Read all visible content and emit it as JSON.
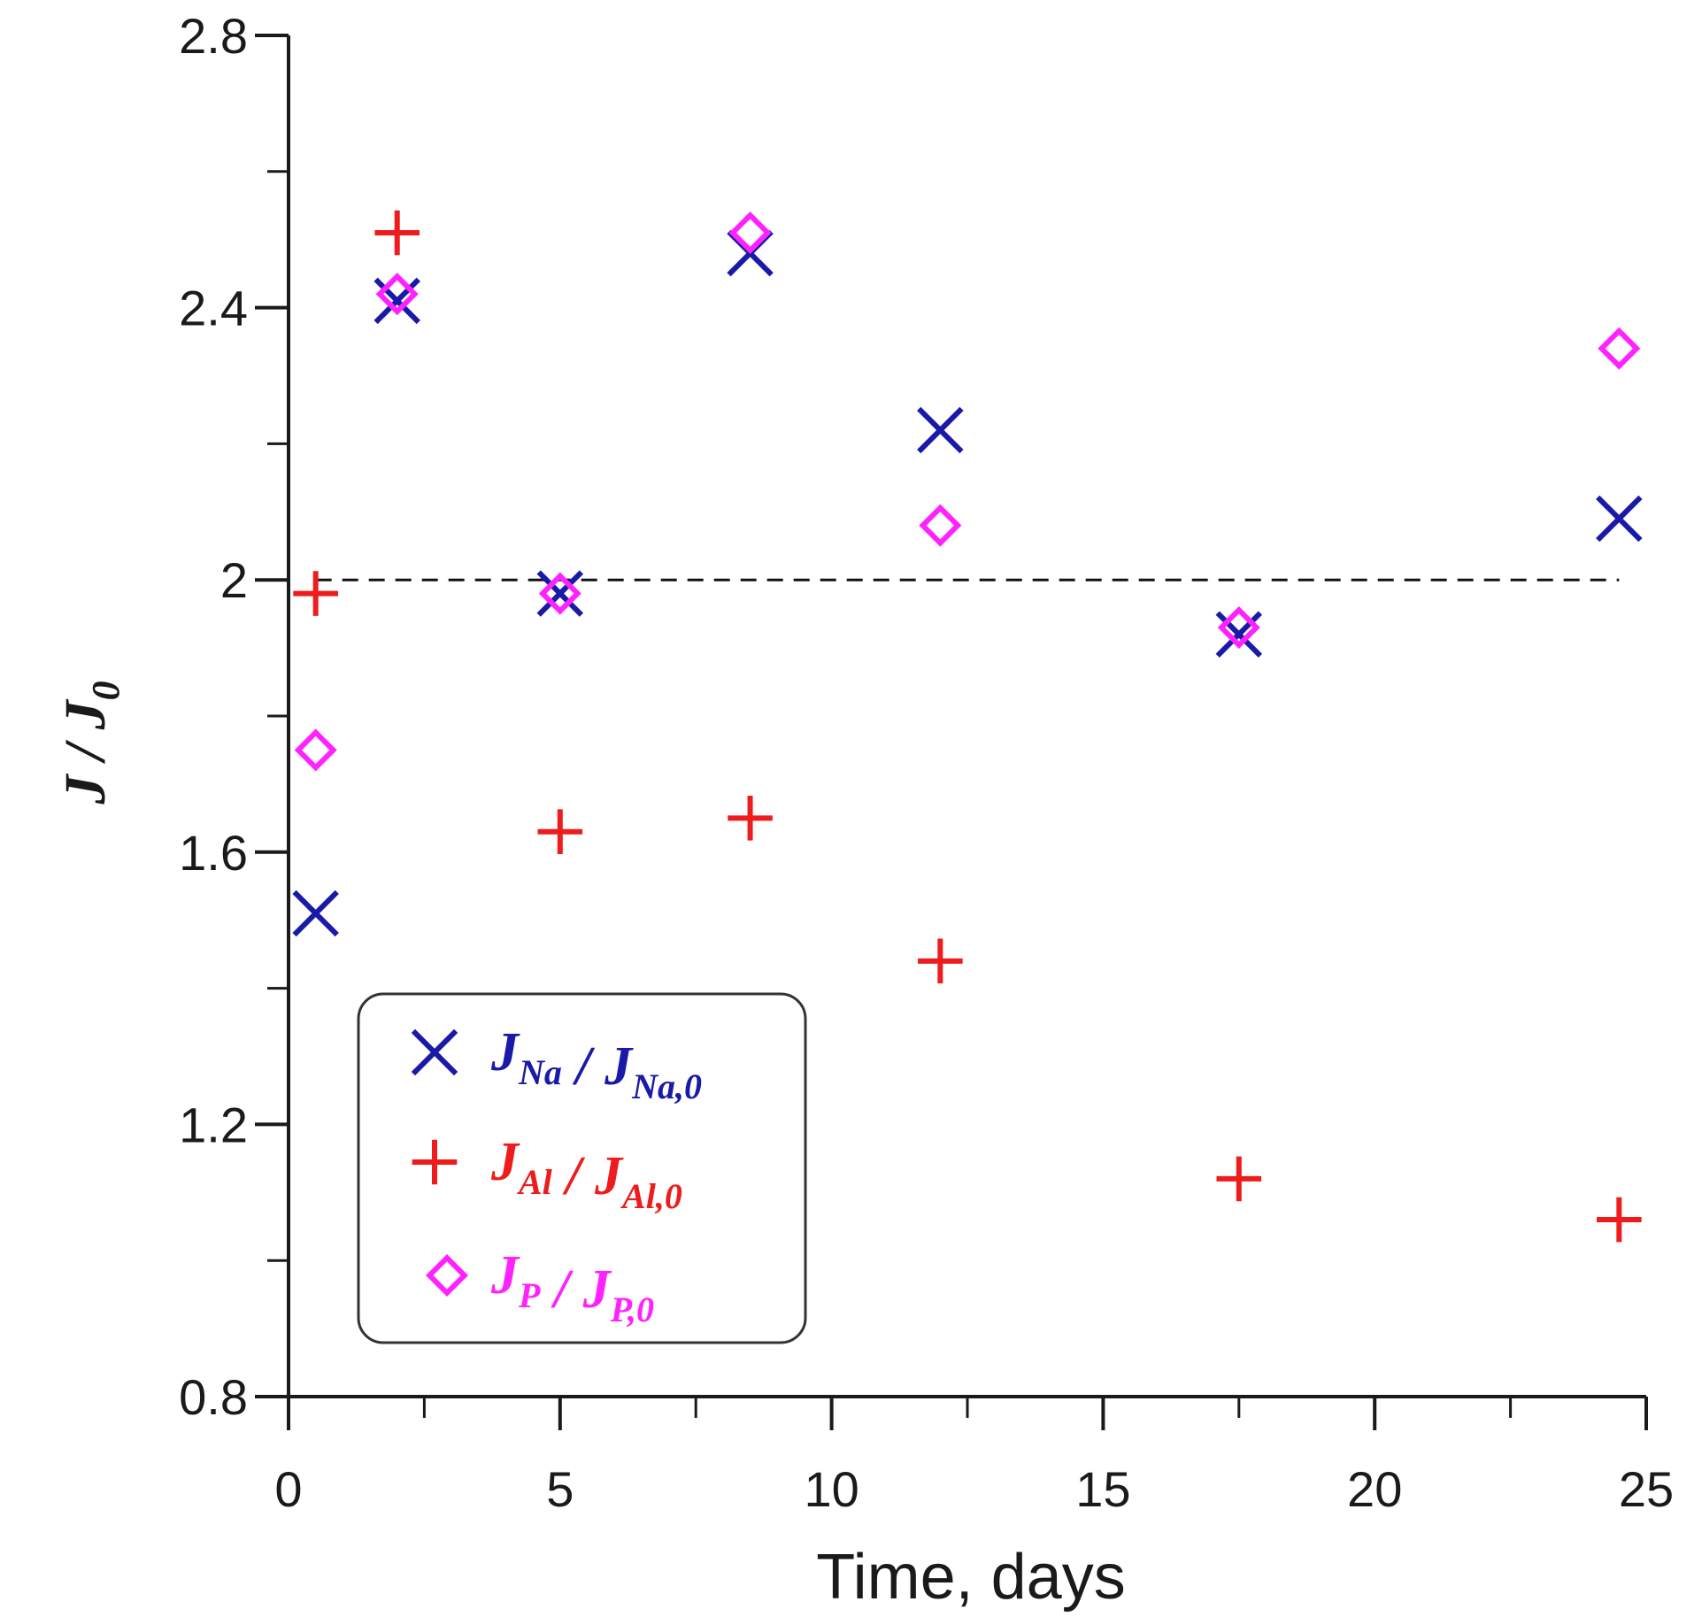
{
  "chart_data": {
    "type": "scatter",
    "title": "",
    "xlabel": "Time, days",
    "ylabel": {
      "main": "J",
      "slash": " / ",
      "sub_main": "J",
      "sub": "0"
    },
    "xlim": [
      0,
      25
    ],
    "ylim": [
      0.8,
      2.8
    ],
    "x_major_ticks": [
      "0",
      "5",
      "10",
      "15",
      "20",
      "25"
    ],
    "x_minor_ticks": [
      2.5,
      7.5,
      12.5,
      17.5,
      22.5
    ],
    "y_major_ticks": [
      "0.8",
      "1.2",
      "1.6",
      "2",
      "2.4",
      "2.8"
    ],
    "y_minor_ticks": [
      1.0,
      1.4,
      1.8,
      2.2,
      2.6
    ],
    "reference_line": {
      "y": 2.0,
      "style": "dashed",
      "x_from": 0.5,
      "x_to": 24.5
    },
    "series": [
      {
        "name": "J_Na / J_Na,0",
        "marker": "x",
        "color": "#1a1aa8",
        "legend": {
          "main": "J",
          "sub": "Na",
          "slash": " / ",
          "main2": "J",
          "sub2": "Na,0"
        },
        "points": [
          {
            "x": 0.5,
            "y": 1.51
          },
          {
            "x": 2,
            "y": 2.41
          },
          {
            "x": 5,
            "y": 1.98
          },
          {
            "x": 8.5,
            "y": 2.48
          },
          {
            "x": 12,
            "y": 2.22
          },
          {
            "x": 17.5,
            "y": 1.92
          },
          {
            "x": 24.5,
            "y": 2.09
          }
        ]
      },
      {
        "name": "J_Al / J_Al,0",
        "marker": "plus",
        "color": "#ee1c1c",
        "legend": {
          "main": "J",
          "sub": "Al",
          "slash": " / ",
          "main2": "J",
          "sub2": "Al,0"
        },
        "points": [
          {
            "x": 0.5,
            "y": 1.98
          },
          {
            "x": 2,
            "y": 2.51
          },
          {
            "x": 5,
            "y": 1.63
          },
          {
            "x": 8.5,
            "y": 1.65
          },
          {
            "x": 12,
            "y": 1.44
          },
          {
            "x": 17.5,
            "y": 1.12
          },
          {
            "x": 24.5,
            "y": 1.06
          }
        ]
      },
      {
        "name": "J_P / J_P,0",
        "marker": "diamond",
        "color": "#ff22ff",
        "legend": {
          "main": "J",
          "sub": "P",
          "slash": " / ",
          "main2": "J",
          "sub2": "P,0"
        },
        "points": [
          {
            "x": 0.5,
            "y": 1.75
          },
          {
            "x": 2,
            "y": 2.42
          },
          {
            "x": 5,
            "y": 1.98
          },
          {
            "x": 8.5,
            "y": 2.51
          },
          {
            "x": 12,
            "y": 2.08
          },
          {
            "x": 17.5,
            "y": 1.93
          },
          {
            "x": 24.5,
            "y": 2.34
          }
        ]
      }
    ],
    "legend_position": "bottom-left"
  }
}
